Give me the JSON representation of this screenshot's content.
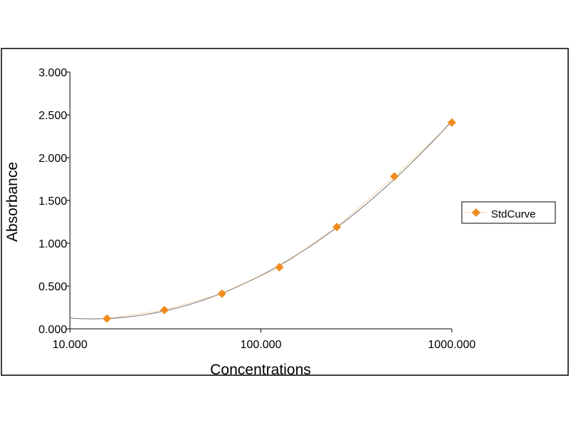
{
  "chart_data": {
    "type": "scatter",
    "title": "",
    "xlabel": "Concentrations",
    "ylabel": "Absorbance",
    "xscale": "log",
    "xlim": [
      10,
      1000
    ],
    "ylim": [
      0,
      3
    ],
    "x_ticks": [
      10,
      100,
      1000
    ],
    "x_tick_labels": [
      "10.000",
      "100.000",
      "1000.000"
    ],
    "y_ticks": [
      0,
      0.5,
      1,
      1.5,
      2,
      2.5,
      3
    ],
    "y_tick_labels": [
      "0.000",
      "0.500",
      "1.000",
      "1.500",
      "2.000",
      "2.500",
      "3.000"
    ],
    "grid": false,
    "legend_position": "right",
    "series": [
      {
        "name": "StdCurve",
        "marker": "diamond",
        "color": "#f08c1e",
        "x": [
          15.625,
          31.25,
          62.5,
          125,
          250,
          500,
          1000
        ],
        "y": [
          0.12,
          0.22,
          0.41,
          0.72,
          1.19,
          1.78,
          2.41
        ]
      }
    ],
    "fit_line_color": "#888888"
  }
}
